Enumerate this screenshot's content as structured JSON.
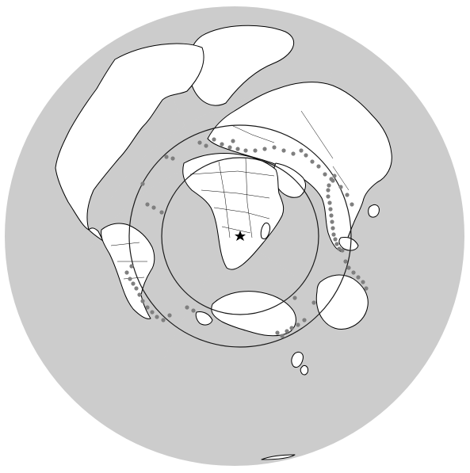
{
  "map": {
    "projection": "azimuthal-equidistant",
    "center": {
      "lat": -26,
      "lon": 28
    },
    "colors": {
      "ocean": "#cccccc",
      "land": "#ffffff",
      "coastline": "#000000",
      "ring": "#1a1a1a",
      "event": "#7f7f7f",
      "station": "#000000"
    },
    "rings_deg": [
      30,
      45
    ],
    "station": {
      "marker": "star-icon",
      "lat": -26,
      "lon": 28
    }
  }
}
